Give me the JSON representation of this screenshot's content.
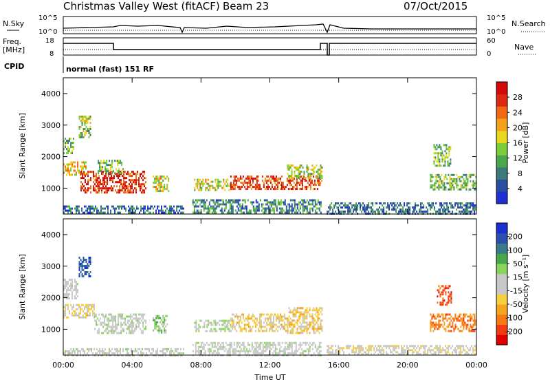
{
  "header": {
    "station": "Christmas Valley West (fitACF)",
    "beam": "Beam 23",
    "date": "07/Oct/2015"
  },
  "top_panels": {
    "nsky_label": "N.Sky",
    "nsky_ticks": [
      "10^5",
      "10^0"
    ],
    "nsearch_label": "N.Search",
    "nsearch_ticks": [
      "10^5",
      "10^0"
    ],
    "freq_label": "Freq.",
    "freq_unit": "[MHz]",
    "freq_ticks": [
      "18",
      "8"
    ],
    "nave_label": "Nave",
    "nave_ticks": [
      "60",
      "0"
    ],
    "cpid_label": "CPID",
    "cpid_text": "normal (fast) 151 RF"
  },
  "chart_data": [
    {
      "type": "heatmap",
      "title": "",
      "xlabel": "",
      "ylabel": "Slant Range [km]",
      "y_ticks": [
        "1000",
        "2000",
        "3000",
        "4000"
      ],
      "ylim": [
        180,
        4500
      ],
      "x_ticks": [
        "00:00",
        "04:00",
        "08:00",
        "12:00",
        "16:00",
        "20:00",
        "00:00"
      ],
      "xlim_hours": [
        0,
        24
      ],
      "colorbar": {
        "label": "Power [dB]",
        "ticks": [
          "4",
          "8",
          "12",
          "16",
          "20",
          "24",
          "28"
        ],
        "range": [
          0,
          30
        ],
        "colors": [
          "#1f2fd0",
          "#2a4fa0",
          "#3a7a7a",
          "#4aa84a",
          "#7ccc3a",
          "#e9d820",
          "#f5a21a",
          "#f06a15",
          "#e02a10",
          "#d40808"
        ]
      },
      "echo_regions": [
        {
          "t": [
            0.0,
            1.3
          ],
          "range": [
            1450,
            1850
          ],
          "power": 18
        },
        {
          "t": [
            1.0,
            4.8
          ],
          "range": [
            850,
            1550
          ],
          "power": 26
        },
        {
          "t": [
            0.0,
            0.6
          ],
          "range": [
            2100,
            2600
          ],
          "power": 12
        },
        {
          "t": [
            0.9,
            1.6
          ],
          "range": [
            2600,
            3300
          ],
          "power": 14
        },
        {
          "t": [
            2.0,
            3.5
          ],
          "range": [
            1500,
            1900
          ],
          "power": 12
        },
        {
          "t": [
            5.2,
            6.1
          ],
          "range": [
            900,
            1400
          ],
          "power": 16
        },
        {
          "t": [
            7.6,
            9.7
          ],
          "range": [
            950,
            1300
          ],
          "power": 16
        },
        {
          "t": [
            9.7,
            15.0
          ],
          "range": [
            950,
            1400
          ],
          "power": 24
        },
        {
          "t": [
            13.0,
            15.0
          ],
          "range": [
            1300,
            1750
          ],
          "power": 14
        },
        {
          "t": [
            21.3,
            24.0
          ],
          "range": [
            950,
            1450
          ],
          "power": 12
        },
        {
          "t": [
            21.5,
            22.5
          ],
          "range": [
            1700,
            2400
          ],
          "power": 12
        },
        {
          "t": [
            7.5,
            15.0
          ],
          "range": [
            200,
            650
          ],
          "power": 8
        },
        {
          "t": [
            15.3,
            24.0
          ],
          "range": [
            200,
            550
          ],
          "power": 6
        },
        {
          "t": [
            0.0,
            7.0
          ],
          "range": [
            200,
            450
          ],
          "power": 6
        }
      ]
    },
    {
      "type": "heatmap",
      "title": "",
      "xlabel": "Time UT",
      "ylabel": "Slant Range [km]",
      "y_ticks": [
        "1000",
        "2000",
        "3000",
        "4000"
      ],
      "ylim": [
        180,
        4500
      ],
      "x_ticks": [
        "00:00",
        "04:00",
        "08:00",
        "12:00",
        "16:00",
        "20:00",
        "00:00"
      ],
      "xlim_hours": [
        0,
        24
      ],
      "colorbar": {
        "label": "Velocity [m s⁻¹]",
        "ticks": [
          "-200",
          "-100",
          "-50",
          "-15",
          "15",
          "50",
          "100",
          "200"
        ],
        "range": [
          -250,
          250
        ],
        "colors": [
          "#e00000",
          "#f03c10",
          "#f57a15",
          "#f5a520",
          "#f5cf40",
          "#c8c8c8",
          "#c8c8c8",
          "#8ad45a",
          "#4aa84a",
          "#3a7a8a",
          "#2a4fb0",
          "#1a2fd0"
        ]
      },
      "echo_regions": [
        {
          "t": [
            0.0,
            1.8
          ],
          "range": [
            1350,
            1800
          ],
          "velocity": -40
        },
        {
          "t": [
            1.8,
            4.8
          ],
          "range": [
            850,
            1500
          ],
          "velocity": 20
        },
        {
          "t": [
            0.9,
            1.6
          ],
          "range": [
            2700,
            3300
          ],
          "velocity": 180
        },
        {
          "t": [
            0.0,
            0.8
          ],
          "range": [
            2000,
            2600
          ],
          "velocity": 5
        },
        {
          "t": [
            5.2,
            6.0
          ],
          "range": [
            900,
            1450
          ],
          "velocity": 60
        },
        {
          "t": [
            7.6,
            9.7
          ],
          "range": [
            950,
            1300
          ],
          "velocity": 30
        },
        {
          "t": [
            9.7,
            13.0
          ],
          "range": [
            950,
            1500
          ],
          "velocity": -50
        },
        {
          "t": [
            13.0,
            15.0
          ],
          "range": [
            900,
            1700
          ],
          "velocity": -60
        },
        {
          "t": [
            21.3,
            24.0
          ],
          "range": [
            950,
            1500
          ],
          "velocity": -140
        },
        {
          "t": [
            21.7,
            22.5
          ],
          "range": [
            1800,
            2400
          ],
          "velocity": -180
        },
        {
          "t": [
            7.5,
            15.0
          ],
          "range": [
            200,
            600
          ],
          "velocity": 8
        },
        {
          "t": [
            15.3,
            24.0
          ],
          "range": [
            200,
            500
          ],
          "velocity": -20
        },
        {
          "t": [
            0.0,
            7.0
          ],
          "range": [
            200,
            400
          ],
          "velocity": 10
        }
      ]
    }
  ]
}
